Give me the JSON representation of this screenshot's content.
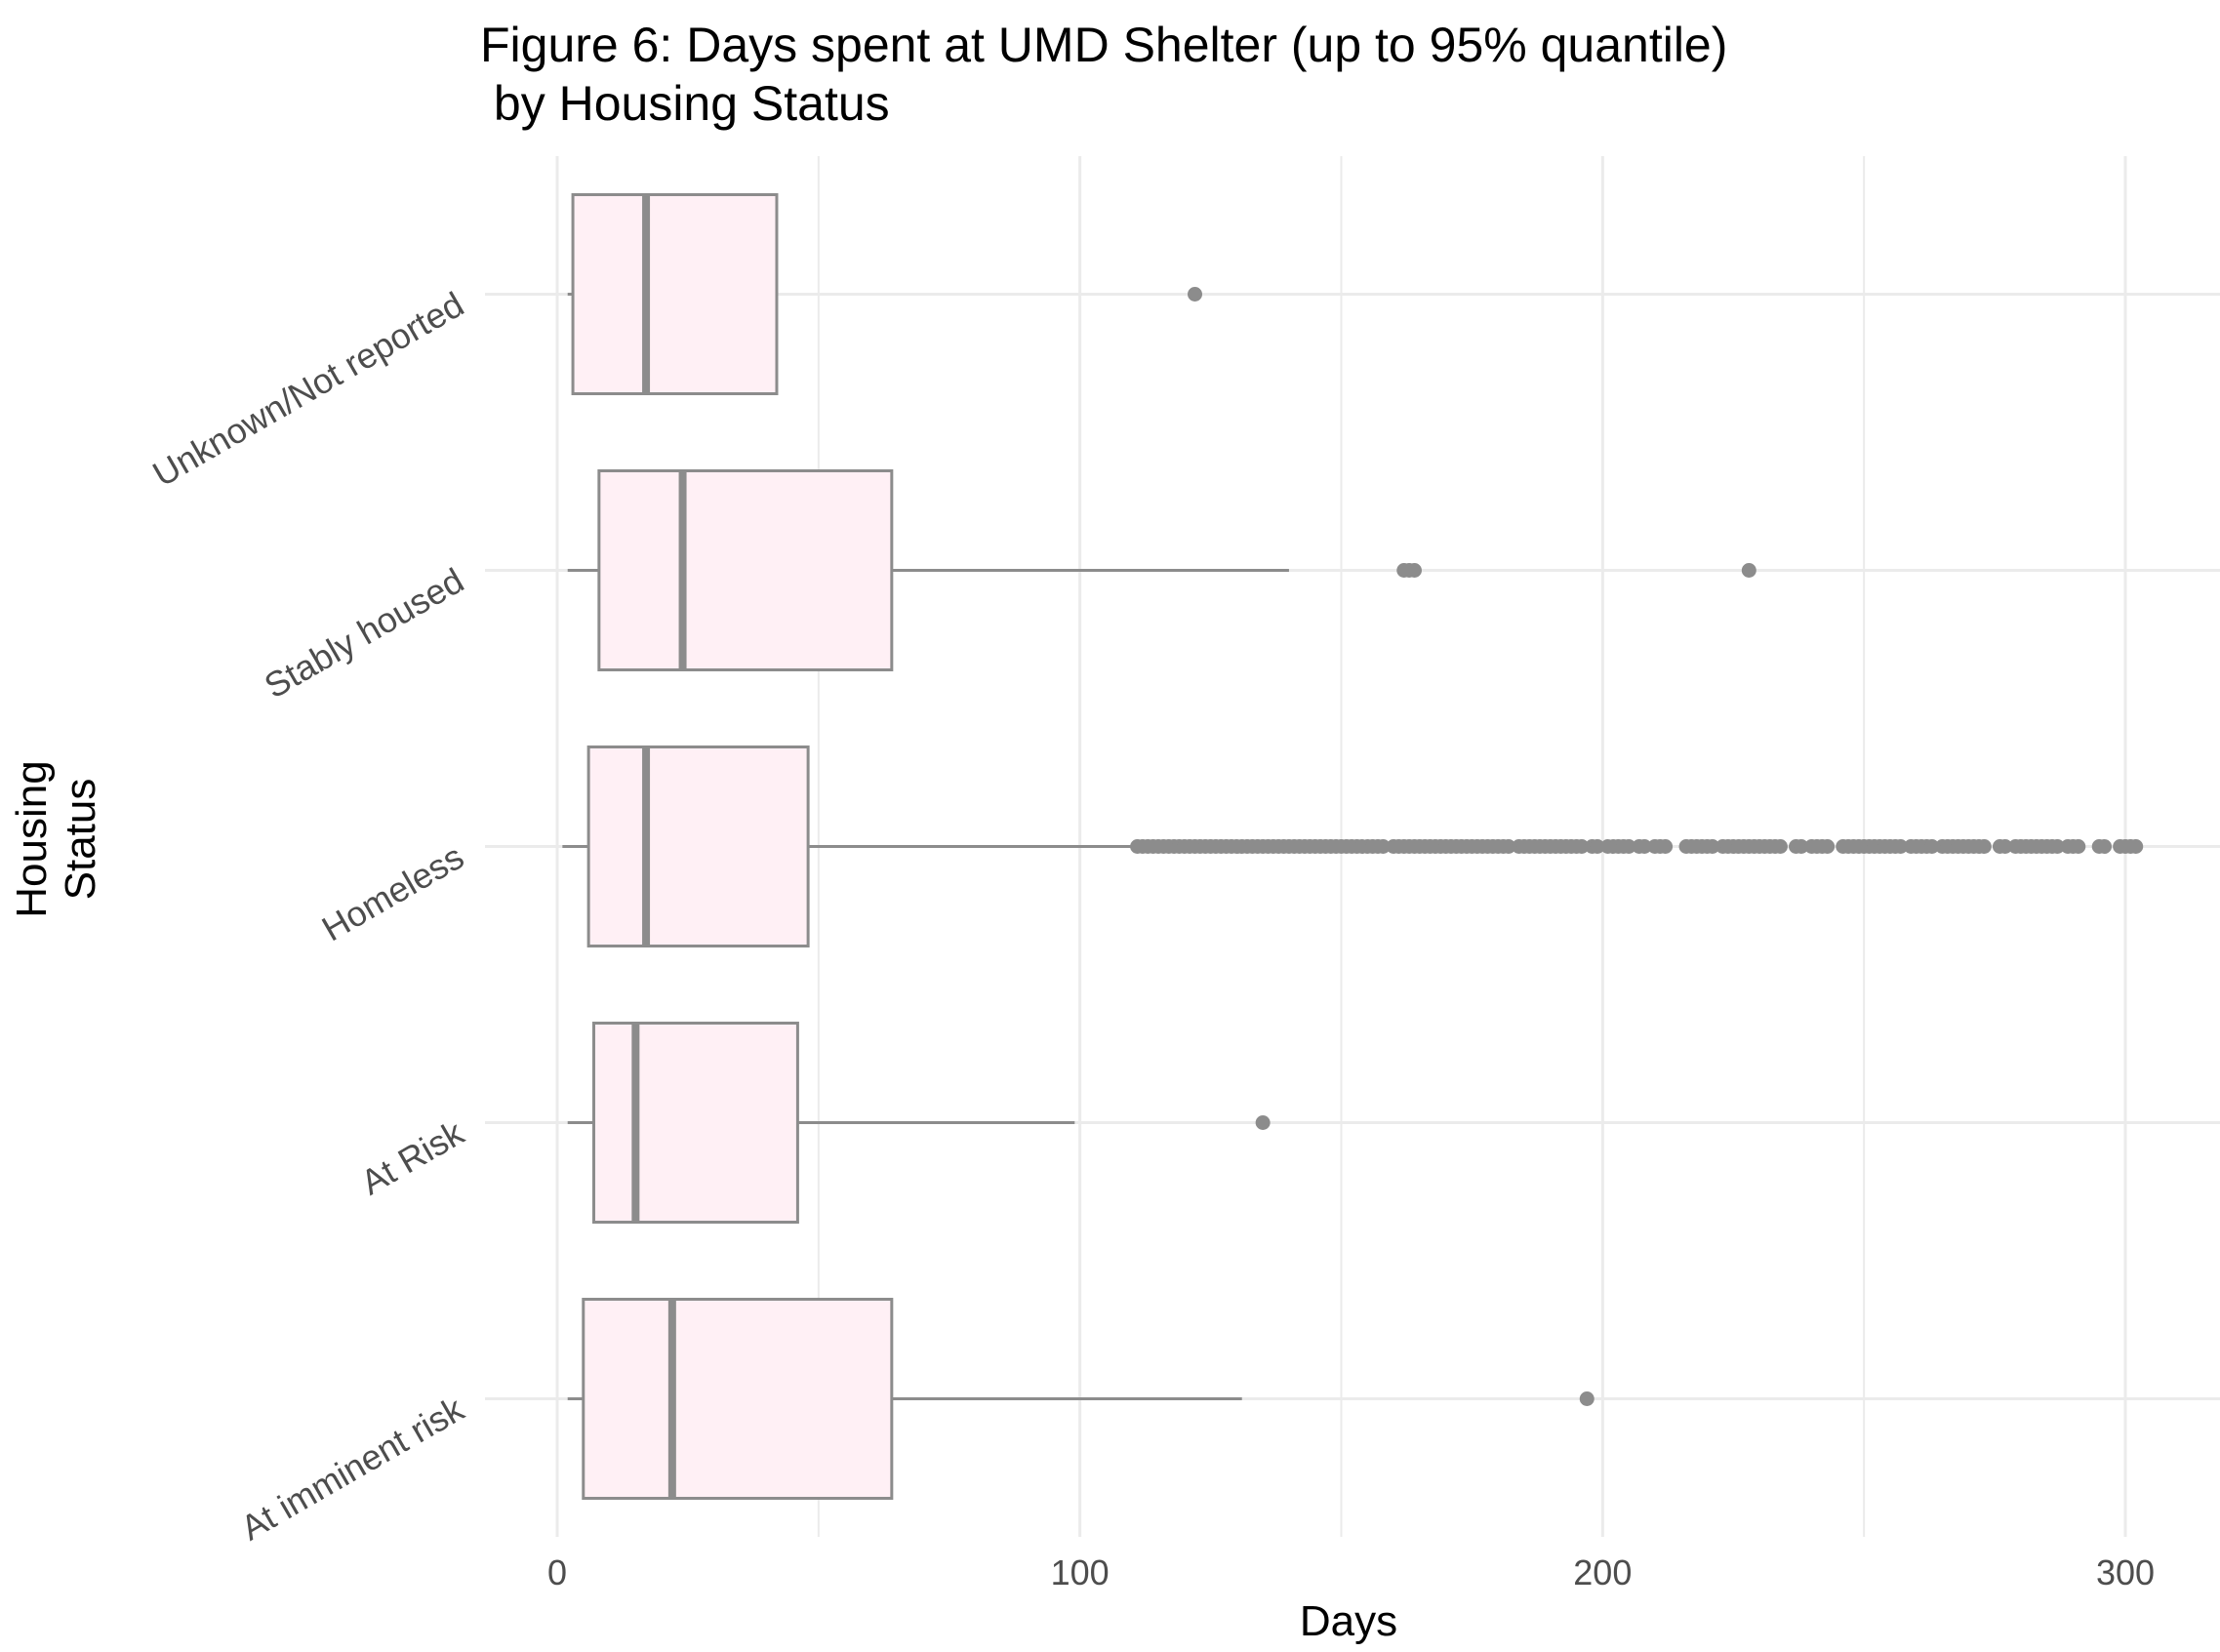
{
  "chart_data": {
    "type": "boxplot",
    "orientation": "horizontal",
    "title_line1": "Figure 6: Days spent at UMD Shelter (up to 95% quantile)",
    "title_line2": " by Housing Status",
    "xlabel": "Days",
    "ylabel_line1": "Housing",
    "ylabel_line2": "Status",
    "xlim": [
      -8,
      318
    ],
    "x_ticks": [
      0,
      100,
      200,
      300
    ],
    "grid": true,
    "legend": "none",
    "colors": {
      "box_fill": "#fff0f5",
      "box_stroke": "#8c8c8c",
      "grid": "#ebebeb"
    },
    "categories": [
      "Unknown/Not reported",
      "Stably housed",
      "Homeless",
      "At Risk",
      "At imminent risk"
    ],
    "boxes": [
      {
        "category": "Unknown/Not reported",
        "min": 2,
        "q1": 3,
        "median": 17,
        "q3": 42,
        "max": 42,
        "outliers": [
          122
        ]
      },
      {
        "category": "Stably housed",
        "min": 2,
        "q1": 8,
        "median": 24,
        "q3": 64,
        "max": 140,
        "outliers": [
          162,
          163,
          164,
          228
        ]
      },
      {
        "category": "Homeless",
        "min": 1,
        "q1": 6,
        "median": 17,
        "q3": 48,
        "max": 110,
        "outliers": [
          111,
          112,
          113,
          114,
          115,
          116,
          117,
          118,
          119,
          120,
          121,
          122,
          123,
          124,
          125,
          126,
          127,
          128,
          129,
          130,
          131,
          132,
          133,
          134,
          135,
          136,
          137,
          138,
          139,
          140,
          141,
          142,
          143,
          144,
          145,
          146,
          147,
          148,
          149,
          150,
          151,
          152,
          153,
          154,
          155,
          156,
          157,
          158,
          160,
          161,
          162,
          163,
          164,
          165,
          166,
          167,
          168,
          169,
          170,
          171,
          172,
          173,
          174,
          175,
          176,
          177,
          178,
          179,
          180,
          181,
          182,
          184,
          185,
          186,
          187,
          188,
          189,
          190,
          191,
          192,
          193,
          194,
          195,
          196,
          198,
          199,
          201,
          202,
          203,
          204,
          205,
          207,
          208,
          210,
          211,
          212,
          216,
          217,
          218,
          219,
          220,
          221,
          223,
          224,
          225,
          226,
          227,
          228,
          229,
          230,
          231,
          232,
          233,
          234,
          237,
          238,
          240,
          241,
          242,
          243,
          246,
          247,
          248,
          249,
          250,
          251,
          252,
          253,
          254,
          255,
          256,
          257,
          259,
          260,
          261,
          262,
          263,
          265,
          266,
          267,
          268,
          269,
          270,
          271,
          272,
          273,
          276,
          277,
          279,
          280,
          281,
          282,
          283,
          284,
          285,
          286,
          287,
          289,
          290,
          291,
          295,
          296,
          299,
          300,
          301,
          302
        ]
      },
      {
        "category": "At Risk",
        "min": 2,
        "q1": 7,
        "median": 15,
        "q3": 46,
        "max": 99,
        "outliers": [
          135
        ]
      },
      {
        "category": "At imminent risk",
        "min": 2,
        "q1": 5,
        "median": 22,
        "q3": 64,
        "max": 131,
        "outliers": [
          197
        ]
      }
    ]
  }
}
